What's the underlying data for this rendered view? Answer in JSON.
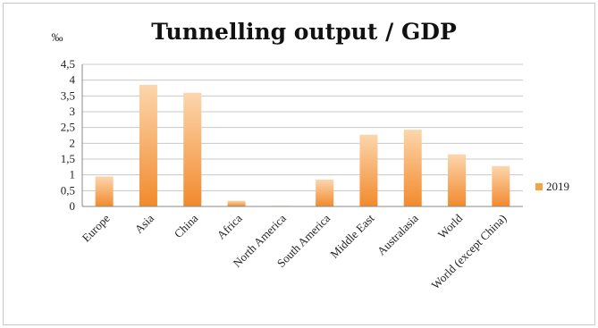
{
  "chart_data": {
    "type": "bar",
    "title": "Tunnelling output / GDP",
    "ylabel": "‰",
    "xlabel": "",
    "categories": [
      "Europe",
      "Asia",
      "China",
      "Africa",
      "North America",
      "South America",
      "Middle East",
      "Australasia",
      "World",
      "World (except China)"
    ],
    "y_tick_labels": [
      "0",
      "0,5",
      "1",
      "1,5",
      "2",
      "2,5",
      "3",
      "3,5",
      "4",
      "4,5"
    ],
    "ylim": [
      0,
      4.5
    ],
    "grid": true,
    "legend_position": "right",
    "series": [
      {
        "name": "2019",
        "color": "#f4a347",
        "values": [
          0.95,
          3.85,
          3.6,
          0.18,
          0.02,
          0.85,
          2.27,
          2.43,
          1.65,
          1.28
        ]
      }
    ],
    "colors": {
      "bar_light": "#fcd6ad",
      "bar_dark": "#f28a2d",
      "grid": "#c8c8c8",
      "axis": "#888888"
    }
  }
}
